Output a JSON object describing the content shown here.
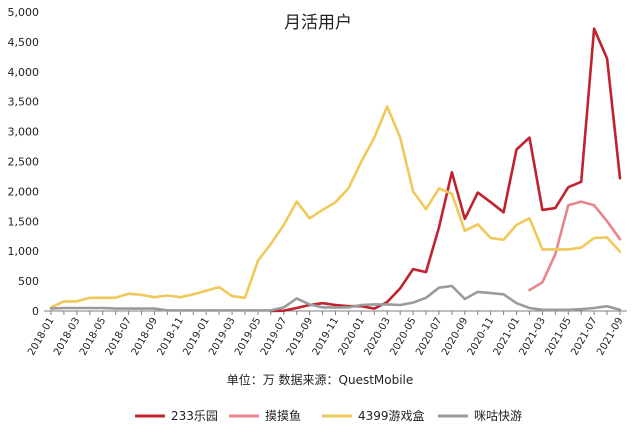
{
  "chart_data": {
    "type": "line",
    "title": "月活用户",
    "caption": "单位：万  数据来源：QuestMobile",
    "ylim": [
      0,
      5000
    ],
    "y_ticks": [
      "0",
      "500",
      "1,000",
      "1,500",
      "2,000",
      "2,500",
      "3,000",
      "3,500",
      "4,000",
      "4,500",
      "5,000"
    ],
    "x_tick_labels": [
      "2018-01",
      "2018-03",
      "2018-05",
      "2018-07",
      "2018-09",
      "2018-11",
      "2019-01",
      "2019-03",
      "2019-05",
      "2019-07",
      "2019-09",
      "2019-11",
      "2020-01",
      "2020-03",
      "2020-05",
      "2020-07",
      "2020-09",
      "2020-11",
      "2021-01",
      "2021-03",
      "2021-05",
      "2021-07",
      "2021-09"
    ],
    "x": [
      "2018-01",
      "2018-02",
      "2018-03",
      "2018-04",
      "2018-05",
      "2018-06",
      "2018-07",
      "2018-08",
      "2018-09",
      "2018-10",
      "2018-11",
      "2018-12",
      "2019-01",
      "2019-02",
      "2019-03",
      "2019-04",
      "2019-05",
      "2019-06",
      "2019-07",
      "2019-08",
      "2019-09",
      "2019-10",
      "2019-11",
      "2019-12",
      "2020-01",
      "2020-02",
      "2020-03",
      "2020-04",
      "2020-05",
      "2020-06",
      "2020-07",
      "2020-08",
      "2020-09",
      "2020-10",
      "2020-11",
      "2020-12",
      "2021-01",
      "2021-02",
      "2021-03",
      "2021-04",
      "2021-05",
      "2021-06",
      "2021-07",
      "2021-08",
      "2021-09"
    ],
    "grid": false,
    "legend_position": "bottom",
    "series": [
      {
        "name": "233乐园",
        "color": "#c0222f",
        "values": [
          null,
          null,
          null,
          null,
          null,
          null,
          null,
          null,
          null,
          null,
          null,
          null,
          null,
          null,
          null,
          null,
          null,
          0,
          5,
          50,
          100,
          130,
          100,
          80,
          80,
          40,
          150,
          380,
          700,
          650,
          1400,
          2320,
          1540,
          1980,
          1820,
          1650,
          2700,
          2900,
          1690,
          1720,
          2070,
          2160,
          4720,
          4220,
          2220
        ]
      },
      {
        "name": "摸摸鱼",
        "color": "#e8858c",
        "values": [
          null,
          null,
          null,
          null,
          null,
          null,
          null,
          null,
          null,
          null,
          null,
          null,
          null,
          null,
          null,
          null,
          null,
          null,
          null,
          null,
          null,
          null,
          null,
          null,
          null,
          null,
          null,
          null,
          null,
          null,
          null,
          null,
          null,
          null,
          null,
          null,
          null,
          350,
          480,
          950,
          1770,
          1830,
          1770,
          1500,
          1200
        ]
      },
      {
        "name": "4399游戏盒",
        "color": "#efc95a",
        "values": [
          60,
          160,
          160,
          220,
          220,
          220,
          290,
          270,
          230,
          260,
          230,
          280,
          340,
          400,
          250,
          220,
          840,
          1120,
          1440,
          1830,
          1550,
          1690,
          1820,
          2050,
          2500,
          2900,
          3420,
          2900,
          2000,
          1700,
          2050,
          1960,
          1340,
          1450,
          1220,
          1190,
          1440,
          1550,
          1030,
          1030,
          1030,
          1060,
          1220,
          1230,
          990
        ]
      },
      {
        "name": "咪咕快游",
        "color": "#9b9b9b",
        "values": [
          40,
          50,
          50,
          50,
          50,
          40,
          40,
          40,
          40,
          10,
          10,
          10,
          10,
          10,
          10,
          10,
          10,
          10,
          60,
          210,
          110,
          60,
          60,
          60,
          100,
          110,
          110,
          100,
          140,
          220,
          390,
          420,
          200,
          320,
          300,
          280,
          130,
          50,
          20,
          20,
          20,
          30,
          50,
          80,
          20
        ]
      }
    ]
  }
}
